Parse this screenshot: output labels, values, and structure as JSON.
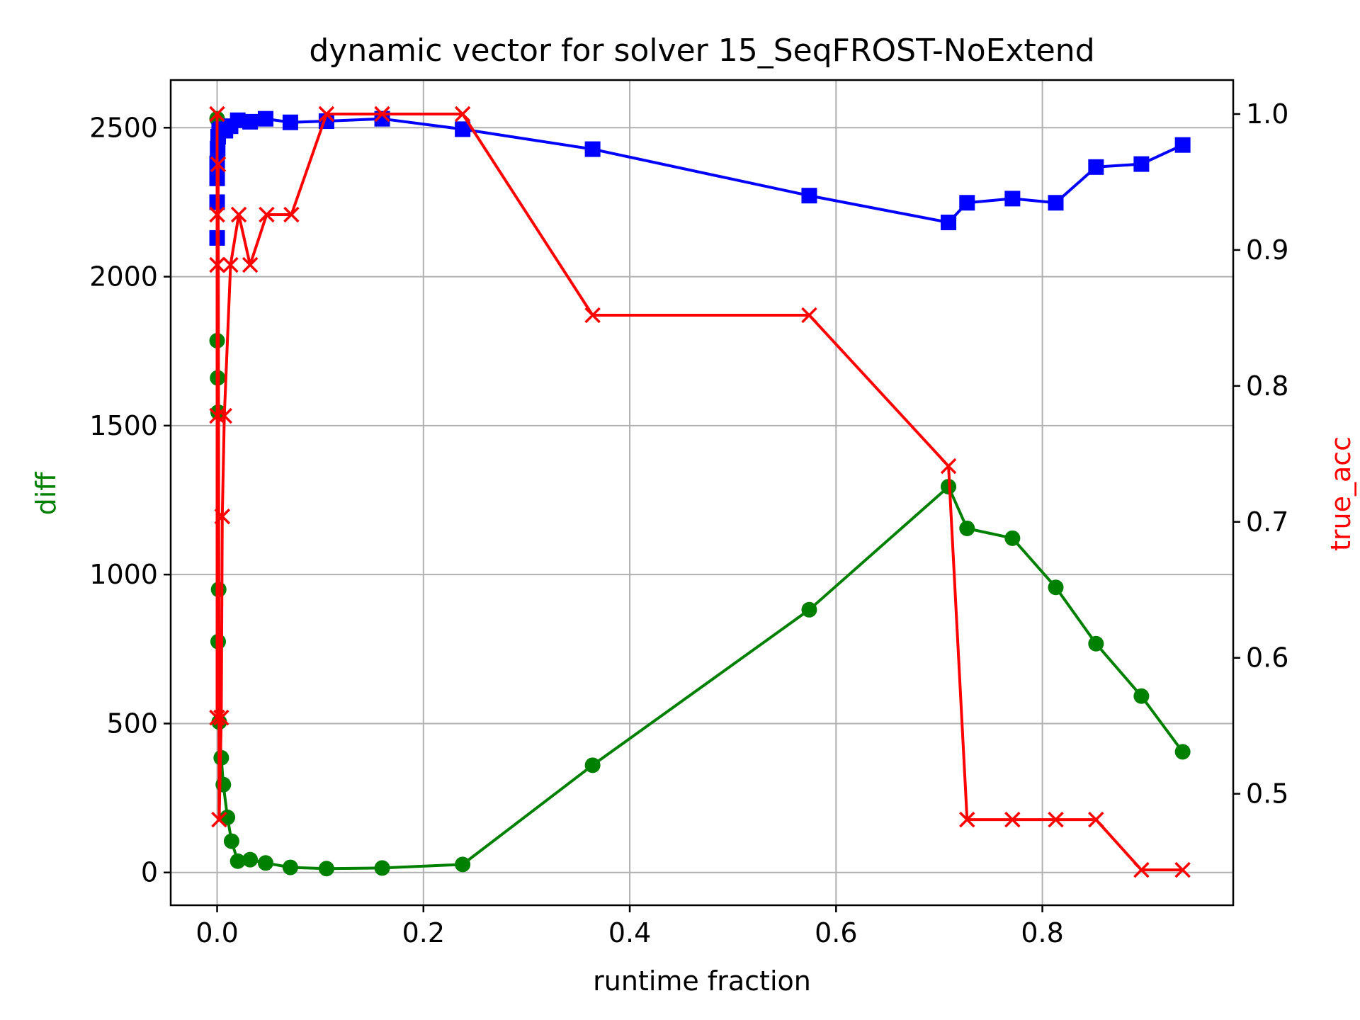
{
  "chart_data": {
    "type": "line",
    "title": "dynamic vector for solver 15_SeqFROST-NoExtend",
    "xlabel": "runtime fraction",
    "ylabel": "diff",
    "y2label": "true_acc",
    "xlim": [
      -0.045,
      0.985
    ],
    "ylim": [
      -110,
      2660
    ],
    "y2lim": [
      0.418,
      1.025
    ],
    "xticks": [
      "0.0",
      "0.2",
      "0.4",
      "0.6",
      "0.8"
    ],
    "xtick_values": [
      0.0,
      0.2,
      0.4,
      0.6,
      0.8
    ],
    "yticks": [
      "0",
      "500",
      "1000",
      "1500",
      "2000",
      "2500"
    ],
    "ytick_values": [
      0,
      500,
      1000,
      1500,
      2000,
      2500
    ],
    "y2ticks": [
      "0.5",
      "0.6",
      "0.7",
      "0.8",
      "0.9",
      "1.0"
    ],
    "y2tick_values": [
      0.5,
      0.6,
      0.7,
      0.8,
      0.9,
      1.0
    ],
    "grid": true,
    "colors": {
      "diff": "#008000",
      "blue": "#0000ff",
      "true_acc": "#ff0000",
      "axes": "#000000",
      "grid": "#b0b0b0"
    },
    "series": [
      {
        "key": "diff",
        "axis": "left",
        "marker": "circle",
        "color": "#008000",
        "points": [
          [
            0.0,
            2530
          ],
          [
            0.0,
            1785
          ],
          [
            0.0005,
            1660
          ],
          [
            0.001,
            1545
          ],
          [
            0.0015,
            950
          ],
          [
            0.001,
            775
          ],
          [
            0.002,
            505
          ],
          [
            0.004,
            385
          ],
          [
            0.006,
            295
          ],
          [
            0.01,
            185
          ],
          [
            0.014,
            105
          ],
          [
            0.02,
            38
          ],
          [
            0.032,
            43
          ],
          [
            0.047,
            32
          ],
          [
            0.071,
            17
          ],
          [
            0.106,
            13
          ],
          [
            0.16,
            15
          ],
          [
            0.238,
            27
          ],
          [
            0.364,
            360
          ],
          [
            0.574,
            882
          ],
          [
            0.709,
            1295
          ],
          [
            0.727,
            1155
          ],
          [
            0.771,
            1122
          ],
          [
            0.813,
            957
          ],
          [
            0.852,
            768
          ],
          [
            0.896,
            592
          ],
          [
            0.936,
            405
          ]
        ]
      },
      {
        "key": "blue",
        "axis": "left",
        "marker": "square",
        "color": "#0000ff",
        "points": [
          [
            0.0,
            2130
          ],
          [
            0.0,
            2250
          ],
          [
            0.0,
            2330
          ],
          [
            0.0,
            2380
          ],
          [
            0.0005,
            2430
          ],
          [
            0.001,
            2470
          ],
          [
            0.002,
            2490
          ],
          [
            0.004,
            2495
          ],
          [
            0.008,
            2490
          ],
          [
            0.013,
            2505
          ],
          [
            0.02,
            2525
          ],
          [
            0.032,
            2520
          ],
          [
            0.047,
            2530
          ],
          [
            0.071,
            2518
          ],
          [
            0.106,
            2522
          ],
          [
            0.16,
            2530
          ],
          [
            0.238,
            2495
          ],
          [
            0.364,
            2428
          ],
          [
            0.574,
            2272
          ],
          [
            0.709,
            2182
          ],
          [
            0.727,
            2248
          ],
          [
            0.771,
            2262
          ],
          [
            0.813,
            2248
          ],
          [
            0.852,
            2368
          ],
          [
            0.896,
            2378
          ],
          [
            0.936,
            2442
          ]
        ]
      },
      {
        "key": "true_acc",
        "axis": "right",
        "marker": "x",
        "color": "#ff0000",
        "points": [
          [
            0.0,
            1.0
          ],
          [
            0.0,
            0.926
          ],
          [
            0.0,
            0.889
          ],
          [
            0.0,
            0.778
          ],
          [
            0.0,
            0.556
          ],
          [
            0.001,
            0.963
          ],
          [
            0.002,
            0.481
          ],
          [
            0.004,
            0.556
          ],
          [
            0.005,
            0.704
          ],
          [
            0.007,
            0.778
          ],
          [
            0.013,
            0.889
          ],
          [
            0.021,
            0.926
          ],
          [
            0.032,
            0.889
          ],
          [
            0.048,
            0.926
          ],
          [
            0.072,
            0.926
          ],
          [
            0.106,
            1.0
          ],
          [
            0.16,
            1.0
          ],
          [
            0.238,
            1.0
          ],
          [
            0.364,
            0.852
          ],
          [
            0.574,
            0.852
          ],
          [
            0.709,
            0.741
          ],
          [
            0.727,
            0.481
          ],
          [
            0.771,
            0.481
          ],
          [
            0.813,
            0.481
          ],
          [
            0.852,
            0.481
          ],
          [
            0.896,
            0.444
          ],
          [
            0.936,
            0.444
          ]
        ]
      }
    ]
  }
}
